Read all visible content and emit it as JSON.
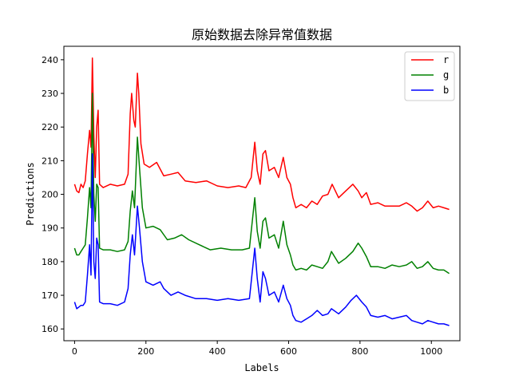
{
  "chart_data": {
    "type": "line",
    "title": "原始数据去除异常值数据",
    "xlabel": "Labels",
    "ylabel": "Predictions",
    "xlim": [
      -30,
      1080
    ],
    "ylim": [
      156.5,
      244
    ],
    "xticks": [
      0,
      200,
      400,
      600,
      800,
      1000
    ],
    "yticks": [
      160,
      170,
      180,
      190,
      200,
      210,
      220,
      230,
      240
    ],
    "grid": false,
    "legend_position": "top-right",
    "series": [
      {
        "name": "r",
        "color": "#ff0000",
        "points": [
          [
            0,
            203
          ],
          [
            6,
            201
          ],
          [
            12,
            200.5
          ],
          [
            18,
            203
          ],
          [
            24,
            202
          ],
          [
            30,
            204
          ],
          [
            36,
            212
          ],
          [
            42,
            219
          ],
          [
            46,
            214
          ],
          [
            50,
            240.5
          ],
          [
            54,
            218
          ],
          [
            58,
            205
          ],
          [
            62,
            220
          ],
          [
            66,
            225
          ],
          [
            70,
            203
          ],
          [
            80,
            202
          ],
          [
            100,
            203
          ],
          [
            120,
            202.5
          ],
          [
            140,
            203
          ],
          [
            150,
            206
          ],
          [
            156,
            224
          ],
          [
            160,
            230
          ],
          [
            166,
            222
          ],
          [
            170,
            220
          ],
          [
            176,
            236
          ],
          [
            180,
            230
          ],
          [
            186,
            215
          ],
          [
            195,
            209
          ],
          [
            210,
            208
          ],
          [
            230,
            209.5
          ],
          [
            250,
            205.5
          ],
          [
            270,
            206
          ],
          [
            290,
            206.5
          ],
          [
            310,
            204
          ],
          [
            340,
            203.5
          ],
          [
            370,
            204
          ],
          [
            400,
            202.5
          ],
          [
            430,
            202
          ],
          [
            460,
            202.5
          ],
          [
            480,
            202
          ],
          [
            495,
            205
          ],
          [
            505,
            215.5
          ],
          [
            512,
            207
          ],
          [
            520,
            203
          ],
          [
            528,
            212
          ],
          [
            535,
            213
          ],
          [
            545,
            207
          ],
          [
            560,
            208
          ],
          [
            572,
            205
          ],
          [
            585,
            211
          ],
          [
            595,
            205
          ],
          [
            605,
            203
          ],
          [
            612,
            199
          ],
          [
            620,
            196
          ],
          [
            635,
            197
          ],
          [
            650,
            196
          ],
          [
            665,
            198
          ],
          [
            680,
            197
          ],
          [
            695,
            199.5
          ],
          [
            710,
            200
          ],
          [
            722,
            203
          ],
          [
            740,
            199
          ],
          [
            760,
            201
          ],
          [
            780,
            203
          ],
          [
            795,
            201
          ],
          [
            805,
            199
          ],
          [
            818,
            200.5
          ],
          [
            830,
            197
          ],
          [
            850,
            197.5
          ],
          [
            870,
            196.5
          ],
          [
            890,
            196.5
          ],
          [
            910,
            196.5
          ],
          [
            930,
            197.5
          ],
          [
            945,
            196.5
          ],
          [
            960,
            195
          ],
          [
            975,
            196
          ],
          [
            990,
            198
          ],
          [
            1005,
            196
          ],
          [
            1020,
            196.5
          ],
          [
            1035,
            196
          ],
          [
            1050,
            195.5
          ]
        ]
      },
      {
        "name": "g",
        "color": "#008000",
        "points": [
          [
            0,
            184
          ],
          [
            6,
            182
          ],
          [
            12,
            182
          ],
          [
            18,
            183
          ],
          [
            24,
            184
          ],
          [
            30,
            185
          ],
          [
            36,
            193
          ],
          [
            42,
            202
          ],
          [
            46,
            196
          ],
          [
            50,
            230
          ],
          [
            54,
            200
          ],
          [
            58,
            192
          ],
          [
            62,
            203
          ],
          [
            66,
            202
          ],
          [
            70,
            184
          ],
          [
            80,
            183.5
          ],
          [
            100,
            183.5
          ],
          [
            120,
            183
          ],
          [
            140,
            183.5
          ],
          [
            150,
            186
          ],
          [
            156,
            195
          ],
          [
            162,
            201
          ],
          [
            168,
            196
          ],
          [
            176,
            217
          ],
          [
            182,
            208
          ],
          [
            190,
            196
          ],
          [
            200,
            190
          ],
          [
            220,
            190.5
          ],
          [
            240,
            189.5
          ],
          [
            260,
            186.5
          ],
          [
            280,
            187
          ],
          [
            300,
            188
          ],
          [
            320,
            186.5
          ],
          [
            350,
            185
          ],
          [
            380,
            183.5
          ],
          [
            410,
            184
          ],
          [
            440,
            183.5
          ],
          [
            470,
            183.5
          ],
          [
            490,
            184
          ],
          [
            505,
            199
          ],
          [
            512,
            189
          ],
          [
            520,
            184
          ],
          [
            528,
            192
          ],
          [
            535,
            193
          ],
          [
            545,
            187
          ],
          [
            560,
            188
          ],
          [
            572,
            184
          ],
          [
            585,
            192
          ],
          [
            595,
            185
          ],
          [
            605,
            182
          ],
          [
            612,
            179
          ],
          [
            620,
            177.5
          ],
          [
            635,
            178
          ],
          [
            650,
            177.5
          ],
          [
            665,
            179
          ],
          [
            680,
            178.5
          ],
          [
            695,
            178
          ],
          [
            710,
            180
          ],
          [
            720,
            183
          ],
          [
            740,
            179.5
          ],
          [
            760,
            181
          ],
          [
            780,
            183
          ],
          [
            795,
            185.5
          ],
          [
            805,
            184
          ],
          [
            818,
            181.5
          ],
          [
            830,
            178.5
          ],
          [
            850,
            178.5
          ],
          [
            870,
            178
          ],
          [
            890,
            179
          ],
          [
            910,
            178.5
          ],
          [
            930,
            179
          ],
          [
            945,
            180
          ],
          [
            960,
            178
          ],
          [
            975,
            178.5
          ],
          [
            990,
            180
          ],
          [
            1005,
            178
          ],
          [
            1020,
            177.5
          ],
          [
            1035,
            177.5
          ],
          [
            1050,
            176.5
          ]
        ]
      },
      {
        "name": "b",
        "color": "#0000ff",
        "points": [
          [
            0,
            168
          ],
          [
            6,
            166
          ],
          [
            12,
            166.5
          ],
          [
            18,
            167
          ],
          [
            24,
            167
          ],
          [
            30,
            168
          ],
          [
            36,
            176
          ],
          [
            42,
            185
          ],
          [
            46,
            176
          ],
          [
            50,
            212
          ],
          [
            54,
            180
          ],
          [
            58,
            175
          ],
          [
            62,
            187
          ],
          [
            66,
            185
          ],
          [
            70,
            168
          ],
          [
            80,
            167.5
          ],
          [
            100,
            167.5
          ],
          [
            120,
            167
          ],
          [
            140,
            168
          ],
          [
            150,
            172
          ],
          [
            156,
            182
          ],
          [
            162,
            188
          ],
          [
            168,
            182
          ],
          [
            176,
            196.5
          ],
          [
            182,
            190
          ],
          [
            190,
            180
          ],
          [
            200,
            174
          ],
          [
            220,
            173
          ],
          [
            240,
            174
          ],
          [
            250,
            172
          ],
          [
            270,
            170
          ],
          [
            290,
            171
          ],
          [
            310,
            170
          ],
          [
            340,
            169
          ],
          [
            370,
            169
          ],
          [
            400,
            168.5
          ],
          [
            430,
            169
          ],
          [
            460,
            168.5
          ],
          [
            490,
            169
          ],
          [
            505,
            184
          ],
          [
            512,
            175
          ],
          [
            520,
            168
          ],
          [
            528,
            177
          ],
          [
            535,
            175
          ],
          [
            545,
            170
          ],
          [
            560,
            171
          ],
          [
            572,
            168
          ],
          [
            585,
            173
          ],
          [
            595,
            169
          ],
          [
            605,
            167
          ],
          [
            612,
            164
          ],
          [
            620,
            162.5
          ],
          [
            635,
            162
          ],
          [
            650,
            163
          ],
          [
            665,
            164
          ],
          [
            680,
            165.5
          ],
          [
            695,
            164
          ],
          [
            710,
            164.5
          ],
          [
            720,
            166
          ],
          [
            740,
            164.5
          ],
          [
            760,
            166.5
          ],
          [
            775,
            168.5
          ],
          [
            790,
            170
          ],
          [
            805,
            168
          ],
          [
            818,
            166.5
          ],
          [
            830,
            164
          ],
          [
            850,
            163.5
          ],
          [
            870,
            164
          ],
          [
            890,
            163
          ],
          [
            910,
            163.5
          ],
          [
            930,
            164
          ],
          [
            945,
            162.5
          ],
          [
            960,
            162
          ],
          [
            975,
            161.5
          ],
          [
            990,
            162.5
          ],
          [
            1005,
            162
          ],
          [
            1020,
            161.5
          ],
          [
            1035,
            161.5
          ],
          [
            1050,
            161
          ]
        ]
      }
    ]
  }
}
